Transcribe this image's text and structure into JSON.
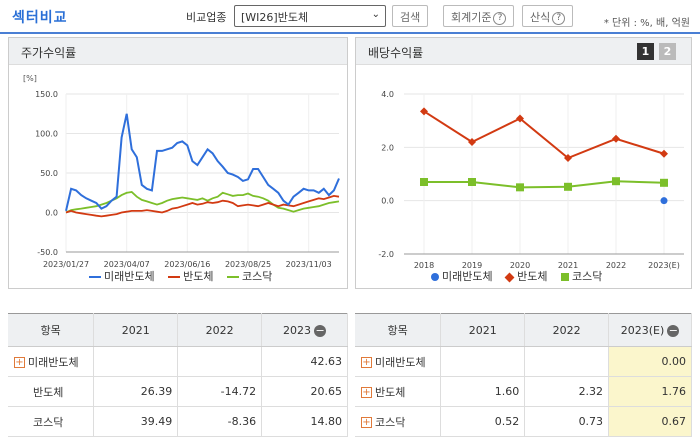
{
  "header": {
    "title": "섹터비교",
    "compare_label": "비교업종",
    "select_value": "[WI26]반도체",
    "search_btn": "검색",
    "accounting_btn": "회계기준",
    "formula_btn": "산식",
    "unit": "* 단위 : %, 배, 억원"
  },
  "left_panel": {
    "title": "주가수익률",
    "unit": "[%]"
  },
  "right_panel": {
    "title": "배당수익률",
    "page1": "1",
    "page2": "2"
  },
  "legend": [
    "미래반도체",
    "반도체",
    "코스닥"
  ],
  "colors": {
    "mirae": "#2f6fdb",
    "semi": "#d23a12",
    "kosdaq": "#7cbf2a"
  },
  "chart_data": [
    {
      "type": "line",
      "x_ticks": [
        "2023/01/27",
        "2023/04/07",
        "2023/06/16",
        "2023/08/25",
        "2023/11/03"
      ],
      "y_ticks": [
        "150.0",
        "100.0",
        "50.0",
        "0.0",
        "-50.0"
      ],
      "ylim": [
        -50,
        150
      ],
      "ylabel": "[%]",
      "series": [
        {
          "name": "미래반도체",
          "values": [
            2,
            30,
            28,
            22,
            18,
            15,
            12,
            5,
            8,
            15,
            20,
            95,
            125,
            80,
            70,
            35,
            30,
            28,
            78,
            78,
            80,
            82,
            88,
            90,
            85,
            65,
            60,
            70,
            80,
            75,
            65,
            58,
            50,
            48,
            45,
            40,
            42,
            55,
            55,
            45,
            35,
            30,
            25,
            15,
            10,
            20,
            25,
            30,
            28,
            28,
            25,
            30,
            22,
            28,
            43
          ]
        },
        {
          "name": "반도체",
          "values": [
            0,
            2,
            0,
            -1,
            -2,
            -3,
            -4,
            -5,
            -4,
            -3,
            -2,
            0,
            1,
            2,
            2,
            2,
            3,
            2,
            1,
            0,
            2,
            5,
            6,
            8,
            10,
            12,
            10,
            11,
            13,
            12,
            13,
            15,
            14,
            12,
            8,
            9,
            10,
            9,
            8,
            10,
            12,
            10,
            8,
            10,
            9,
            8,
            10,
            12,
            14,
            16,
            18,
            17,
            19,
            21,
            20
          ]
        },
        {
          "name": "코스닥",
          "values": [
            0,
            3,
            4,
            5,
            6,
            7,
            8,
            10,
            12,
            15,
            18,
            22,
            25,
            26,
            20,
            16,
            14,
            12,
            10,
            12,
            15,
            17,
            18,
            19,
            18,
            17,
            16,
            18,
            15,
            18,
            20,
            25,
            23,
            21,
            22,
            22,
            24,
            21,
            20,
            18,
            15,
            10,
            6,
            5,
            3,
            1,
            3,
            5,
            6,
            7,
            8,
            10,
            12,
            13,
            14
          ]
        }
      ]
    },
    {
      "type": "line",
      "categories": [
        "2018",
        "2019",
        "2020",
        "2021",
        "2022",
        "2023(E)"
      ],
      "y_ticks": [
        "4.0",
        "2.0",
        "0.0",
        "-2.0"
      ],
      "ylim": [
        -2,
        4
      ],
      "series": [
        {
          "name": "미래반도체",
          "values": [
            null,
            null,
            null,
            null,
            null,
            0.0
          ]
        },
        {
          "name": "반도체",
          "values": [
            3.35,
            2.2,
            3.08,
            1.6,
            2.32,
            1.76
          ]
        },
        {
          "name": "코스닥",
          "values": [
            0.7,
            0.7,
            0.5,
            0.52,
            0.73,
            0.67
          ]
        }
      ]
    }
  ],
  "left_table": {
    "headers": [
      "항목",
      "2021",
      "2022",
      "2023"
    ],
    "rows": [
      {
        "name": "미래반도체",
        "plus": true,
        "v1": "",
        "v2": "",
        "v3": "42.63"
      },
      {
        "name": "반도체",
        "plus": false,
        "v1": "26.39",
        "v2": "-14.72",
        "v3": "20.65"
      },
      {
        "name": "코스닥",
        "plus": false,
        "v1": "39.49",
        "v2": "-8.36",
        "v3": "14.80"
      }
    ]
  },
  "right_table": {
    "headers": [
      "항목",
      "2021",
      "2022",
      "2023(E)"
    ],
    "rows": [
      {
        "name": "미래반도체",
        "plus": true,
        "v1": "",
        "v2": "",
        "v3": "0.00"
      },
      {
        "name": "반도체",
        "plus": true,
        "v1": "1.60",
        "v2": "2.32",
        "v3": "1.76"
      },
      {
        "name": "코스닥",
        "plus": true,
        "v1": "0.52",
        "v2": "0.73",
        "v3": "0.67"
      }
    ]
  }
}
